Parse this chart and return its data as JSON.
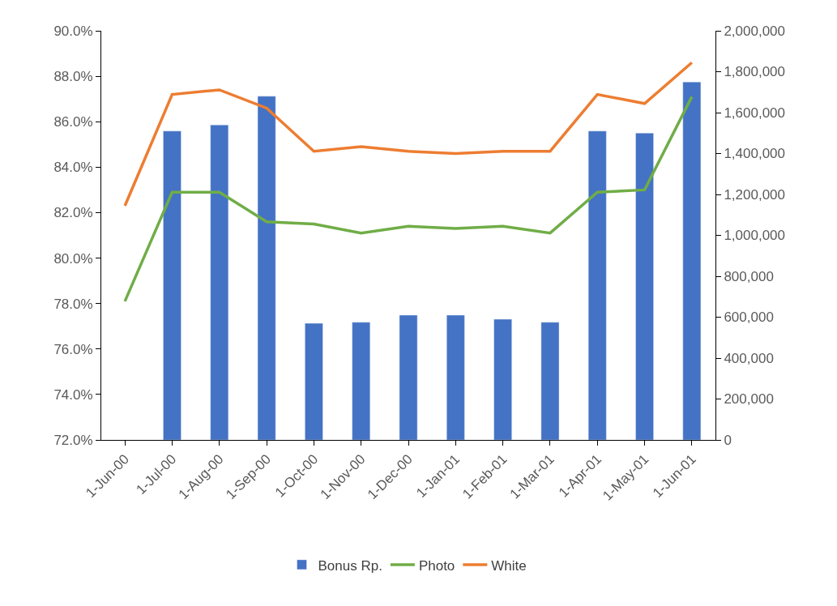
{
  "chart_data": {
    "type": "bar",
    "categories": [
      "1-Jun-00",
      "1-Jul-00",
      "1-Aug-00",
      "1-Sep-00",
      "1-Oct-00",
      "1-Nov-00",
      "1-Dec-00",
      "1-Jan-01",
      "1-Feb-01",
      "1-Mar-01",
      "1-Apr-01",
      "1-May-01",
      "1-Jun-01"
    ],
    "series": [
      {
        "name": "Bonus Rp.",
        "axis": "y2",
        "color": "#4472c4",
        "values": [
          null,
          1510000,
          1540000,
          1680000,
          570000,
          575000,
          610000,
          610000,
          590000,
          575000,
          1510000,
          1500000,
          1750000
        ]
      },
      {
        "name": "Photo",
        "type": "line",
        "color": "#70ad47",
        "values": [
          78.1,
          82.9,
          82.9,
          81.6,
          81.5,
          81.1,
          81.4,
          81.3,
          81.4,
          81.1,
          82.9,
          83.0,
          87.1
        ]
      },
      {
        "name": "White",
        "type": "line",
        "color": "#ed7d31",
        "values": [
          82.3,
          87.2,
          87.4,
          86.6,
          84.7,
          84.9,
          84.7,
          84.6,
          84.7,
          84.7,
          87.2,
          86.8,
          88.6
        ]
      }
    ],
    "ylim": [
      72,
      90
    ],
    "yticks": [
      {
        "value": 72,
        "label": "72.0%"
      },
      {
        "value": 74,
        "label": "74.0%"
      },
      {
        "value": 76,
        "label": "76.0%"
      },
      {
        "value": 78,
        "label": "78.0%"
      },
      {
        "value": 80,
        "label": "80.0%"
      },
      {
        "value": 82,
        "label": "82.0%"
      },
      {
        "value": 84,
        "label": "84.0%"
      },
      {
        "value": 86,
        "label": "86.0%"
      },
      {
        "value": 88,
        "label": "88.0%"
      },
      {
        "value": 90,
        "label": "90.0%"
      }
    ],
    "y2lim": [
      0,
      2000000
    ],
    "y2ticks": [
      0,
      {
        "value": 200000,
        "label": "200,000"
      },
      {
        "value": 400000,
        "label": "400,000"
      },
      {
        "value": 600000,
        "label": "600,000"
      },
      {
        "value": 800000,
        "label": "800,000"
      },
      {
        "value": 1000000,
        "label": "1,000,000"
      },
      {
        "value": 1200000,
        "label": "1,200,000"
      },
      {
        "value": 1400000,
        "label": "1,400,000"
      },
      {
        "value": 1600000,
        "label": "1,600,000"
      },
      {
        "value": 1800000,
        "label": "1,800,000"
      },
      {
        "value": 2000000,
        "label": "2,000,000"
      }
    ],
    "legend": "bottom",
    "grid": false,
    "marker": "none",
    "line_style": "solid"
  }
}
